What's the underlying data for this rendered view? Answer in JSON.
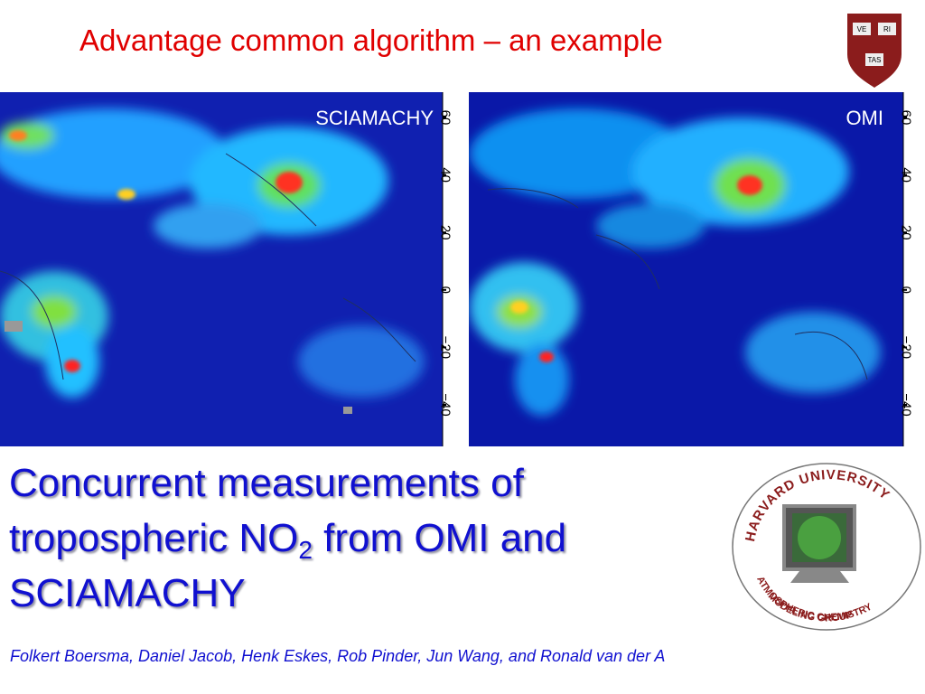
{
  "title": "Advantage common algorithm – an example",
  "shield": {
    "top_left": "VE",
    "top_right": "RI",
    "bottom": "TAS"
  },
  "panels": [
    {
      "label": "SCIAMACHY",
      "lat_ticks": [
        "60",
        "40",
        "20",
        "0",
        "−20",
        "−40"
      ]
    },
    {
      "label": "OMI",
      "lat_ticks": [
        "60",
        "40",
        "20",
        "0",
        "−20",
        "−40"
      ]
    }
  ],
  "heading": {
    "line1": "Concurrent measurements of",
    "line2_before": "tropospheric NO",
    "line2_sub": "2",
    "line2_after": " from OMI and",
    "line3": "SCIAMACHY"
  },
  "authors": "Folkert Boersma, Daniel Jacob, Henk Eskes, Rob Pinder, Jun Wang, and Ronald van der A",
  "logo": {
    "top": "HARVARD UNIVERSITY",
    "bottom1": "ATMOSPHERIC CHEMISTRY",
    "bottom2": "MODELING GROUP"
  }
}
